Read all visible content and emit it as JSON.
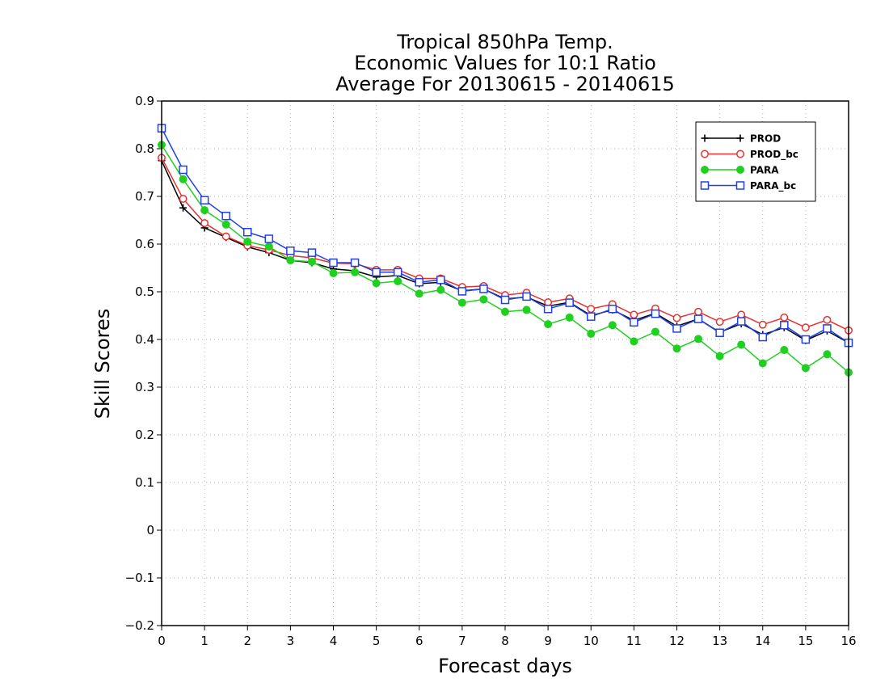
{
  "chart_data": {
    "type": "line",
    "title_lines": [
      "Tropical 850hPa Temp.",
      "Economic Values for 10:1 Ratio",
      "Average For 20130615 - 20140615"
    ],
    "xlabel": "Forecast days",
    "ylabel": "Skill Scores",
    "xlim": [
      0,
      16
    ],
    "ylim": [
      -0.2,
      0.9
    ],
    "xticks": [
      0,
      1,
      2,
      3,
      4,
      5,
      6,
      7,
      8,
      9,
      10,
      11,
      12,
      13,
      14,
      15,
      16
    ],
    "yticks": [
      -0.2,
      -0.1,
      0,
      0.1,
      0.2,
      0.3,
      0.4,
      0.5,
      0.6,
      0.7,
      0.8,
      0.9
    ],
    "ytick_labels": [
      "−0.2",
      "−0.1",
      "0",
      "0.1",
      "0.2",
      "0.3",
      "0.4",
      "0.5",
      "0.6",
      "0.7",
      "0.8",
      "0.9"
    ],
    "grid": true,
    "legend_position": "top-right",
    "x": [
      0,
      0.5,
      1,
      1.5,
      2,
      2.5,
      3,
      3.5,
      4,
      4.5,
      5,
      5.5,
      6,
      6.5,
      7,
      7.5,
      8,
      8.5,
      9,
      9.5,
      10,
      10.5,
      11,
      11.5,
      12,
      12.5,
      13,
      13.5,
      14,
      14.5,
      15,
      15.5,
      16
    ],
    "series": [
      {
        "name": "PROD",
        "color": "#000000",
        "marker": "plus",
        "values": [
          0.775,
          0.676,
          0.634,
          0.614,
          0.594,
          0.582,
          0.566,
          0.561,
          0.548,
          0.544,
          0.531,
          0.534,
          0.517,
          0.52,
          0.502,
          0.506,
          0.485,
          0.489,
          0.47,
          0.478,
          0.45,
          0.462,
          0.44,
          0.455,
          0.428,
          0.443,
          0.415,
          0.433,
          0.41,
          0.425,
          0.398,
          0.418,
          0.393
        ]
      },
      {
        "name": "PROD_bc",
        "color": "#e83030",
        "marker": "circle-open",
        "values": [
          0.781,
          0.695,
          0.644,
          0.616,
          0.597,
          0.588,
          0.576,
          0.571,
          0.56,
          0.559,
          0.546,
          0.546,
          0.528,
          0.528,
          0.51,
          0.512,
          0.493,
          0.498,
          0.478,
          0.486,
          0.464,
          0.474,
          0.452,
          0.465,
          0.445,
          0.458,
          0.437,
          0.452,
          0.431,
          0.446,
          0.425,
          0.441,
          0.419
        ]
      },
      {
        "name": "PARA",
        "color": "#20d020",
        "marker": "circle-filled",
        "values": [
          0.808,
          0.736,
          0.671,
          0.641,
          0.605,
          0.595,
          0.566,
          0.563,
          0.539,
          0.541,
          0.518,
          0.522,
          0.496,
          0.504,
          0.477,
          0.484,
          0.458,
          0.462,
          0.432,
          0.446,
          0.412,
          0.43,
          0.396,
          0.416,
          0.381,
          0.401,
          0.365,
          0.389,
          0.35,
          0.378,
          0.34,
          0.369,
          0.331
        ]
      },
      {
        "name": "PARA_bc",
        "color": "#2040e8",
        "marker": "square-open",
        "values": [
          0.843,
          0.756,
          0.692,
          0.659,
          0.625,
          0.611,
          0.586,
          0.582,
          0.561,
          0.561,
          0.541,
          0.541,
          0.52,
          0.525,
          0.501,
          0.506,
          0.483,
          0.49,
          0.464,
          0.477,
          0.448,
          0.464,
          0.436,
          0.454,
          0.423,
          0.443,
          0.414,
          0.438,
          0.405,
          0.43,
          0.4,
          0.423,
          0.393
        ]
      }
    ]
  }
}
